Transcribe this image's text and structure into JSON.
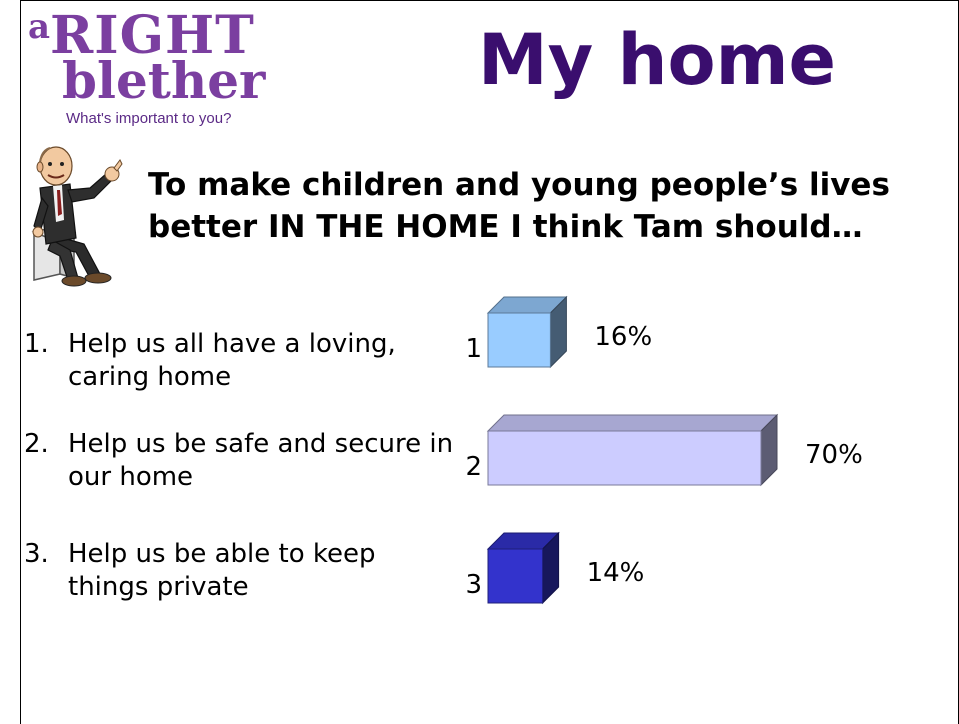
{
  "logo": {
    "a": "a",
    "right": "RIGHT",
    "blether": "blether",
    "tagline": "What's important to you?"
  },
  "title": "My home",
  "question": "To make children and young people’s lives better IN THE HOME I think Tam should…",
  "options": [
    {
      "number": "1.",
      "text": "Help us all have a loving, caring home"
    },
    {
      "number": "2.",
      "text": "Help us be safe and secure in our home"
    },
    {
      "number": "3.",
      "text": "Help us be able to keep things private"
    }
  ],
  "colors": {
    "title": "#3a0e6e",
    "logo": "#7b3fa0"
  },
  "chart_data": {
    "type": "bar",
    "orientation": "horizontal",
    "categories": [
      "1",
      "2",
      "3"
    ],
    "values": [
      16,
      70,
      14
    ],
    "value_labels": [
      "16%",
      "70%",
      "14%"
    ],
    "unit": "%",
    "colors": [
      "#99ccff",
      "#ccccff",
      "#3333cc"
    ],
    "title": "",
    "xlabel": "",
    "ylabel": "",
    "xlim": [
      0,
      100
    ],
    "grid": false,
    "legend": "none"
  }
}
